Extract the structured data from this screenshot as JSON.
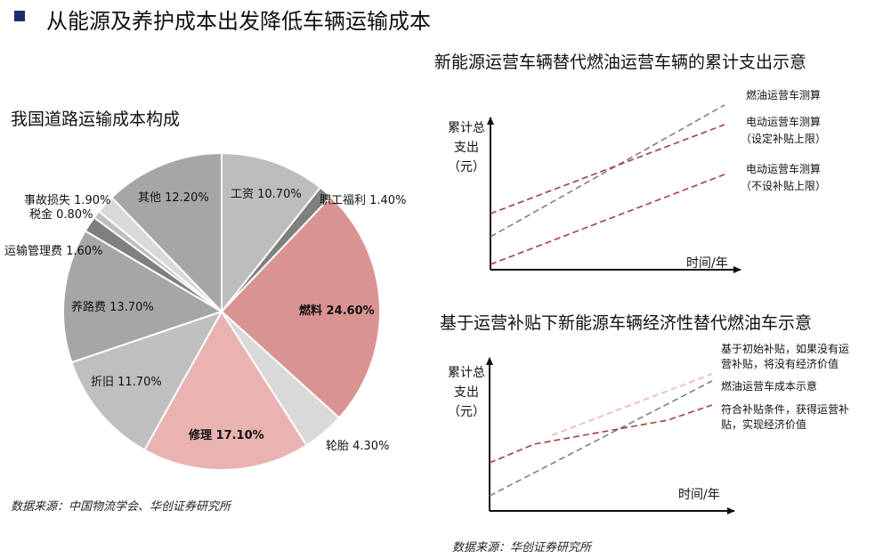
{
  "page": {
    "title": "从能源及养护成本出发降低车辆运输成本",
    "source_left": "数据来源：中国物流学会、华创证券研究所",
    "source_right": "数据来源：华创证券研究所"
  },
  "colors": {
    "title_marker": "#1f2a6b",
    "pie_highlight_fuel": "#d99491",
    "pie_highlight_repair": "#e9b3b2",
    "gray_dark": "#9a9a9a",
    "gray_mid": "#b3b3b3",
    "gray_light": "#d0d0d0",
    "line_fuel": "#808080",
    "line_ev": "#a2403f"
  },
  "chart_data": [
    {
      "type": "pie",
      "title": "我国道路运输成本构成",
      "slices": [
        {
          "label": "工资",
          "value": 10.7,
          "display": "工资 10.70%",
          "color": "#bdbdbd"
        },
        {
          "label": "职工福利",
          "value": 1.4,
          "display": "职工福利 1.40%",
          "color": "#7f7f7f"
        },
        {
          "label": "燃料",
          "value": 24.6,
          "display": "燃料 24.60%",
          "color": "#d99491",
          "bold": true
        },
        {
          "label": "轮胎",
          "value": 4.3,
          "display": "轮胎 4.30%",
          "color": "#d9d9d9"
        },
        {
          "label": "修理",
          "value": 17.1,
          "display": "修理 17.10%",
          "color": "#e9b3b2",
          "bold": true
        },
        {
          "label": "折旧",
          "value": 11.7,
          "display": "折旧 11.70%",
          "color": "#bfbfbf"
        },
        {
          "label": "养路费",
          "value": 13.7,
          "display": "养路费 13.70%",
          "color": "#a6a6a6"
        },
        {
          "label": "运输管理费",
          "value": 1.6,
          "display": "运输管理费 1.60%",
          "color": "#7f7f7f"
        },
        {
          "label": "税金",
          "value": 0.8,
          "display": "税金 0.80%",
          "color": "#bfbfbf"
        },
        {
          "label": "事故损失",
          "value": 1.9,
          "display": "事故损失 1.90%",
          "color": "#d9d9d9"
        },
        {
          "label": "其他",
          "value": 12.2,
          "display": "其他 12.20%",
          "color": "#a6a6a6"
        }
      ]
    },
    {
      "type": "line",
      "title": "新能源运营车辆替代燃油运营车辆的累计支出示意",
      "ylabel": [
        "累计总",
        "支出",
        "（元）"
      ],
      "xlabel": "时间/年",
      "series": [
        {
          "name": "燃油运营车测算",
          "style": "dashed",
          "color": "#808080"
        },
        {
          "name": "电动运营车测算（设定补贴上限）",
          "label_lines": [
            "电动运营车测算",
            "（设定补贴上限）"
          ],
          "style": "dashed",
          "color": "#a2403f"
        },
        {
          "name": "电动运营车测算（不设补贴上限）",
          "label_lines": [
            "电动运营车测算",
            "（不设补贴上限）"
          ],
          "style": "dashed",
          "color": "#a2403f"
        }
      ]
    },
    {
      "type": "line",
      "title": "基于运营补贴下新能源车辆经济性替代燃油车示意",
      "ylabel": [
        "累计总",
        "支出",
        "（元）"
      ],
      "xlabel": "时间/年",
      "series": [
        {
          "name": "基于初始补贴，如果没有运营补贴，将没有经济价值",
          "label_lines": [
            "基于初始补贴，如果没有运",
            "营补贴，将没有经济价值"
          ],
          "style": "dashed",
          "color": "#e6b6b5"
        },
        {
          "name": "燃油运营车成本示意",
          "style": "dashed",
          "color": "#808080"
        },
        {
          "name": "符合补贴条件，获得运营补贴，实现经济价值",
          "label_lines": [
            "符合补贴条件，获得运营补",
            "贴，实现经济价值"
          ],
          "style": "dashed",
          "color": "#a2403f"
        }
      ]
    }
  ]
}
